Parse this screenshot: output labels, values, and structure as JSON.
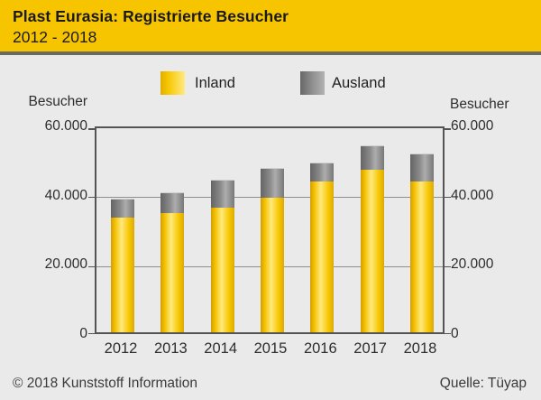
{
  "header": {
    "title": "Plast Eurasia: Registrierte Besucher",
    "subtitle": "2012 - 2018"
  },
  "legend": {
    "items": [
      {
        "label": "Inland",
        "color": "#F7C500"
      },
      {
        "label": "Ausland",
        "color": "#8C8C8C"
      }
    ]
  },
  "axis": {
    "left_title": "Besucher",
    "right_title": "Besucher",
    "ytick_labels": [
      "60.000",
      "40.000",
      "20.000",
      "0"
    ]
  },
  "chart_data": {
    "type": "bar",
    "stacked": true,
    "title": "Plast Eurasia: Registrierte Besucher 2012 - 2018",
    "categories": [
      "2012",
      "2013",
      "2014",
      "2015",
      "2016",
      "2017",
      "2018"
    ],
    "series": [
      {
        "name": "Inland",
        "values": [
          33000,
          34400,
          36000,
          38800,
          43600,
          46900,
          43600
        ]
      },
      {
        "name": "Ausland",
        "values": [
          5600,
          6000,
          8000,
          8500,
          5400,
          7100,
          8100
        ]
      }
    ],
    "totals": [
      38600,
      40400,
      44000,
      47300,
      49000,
      54000,
      51700
    ],
    "ylabel": "Besucher",
    "ylim": [
      0,
      60000
    ],
    "ytick_interval": 20000,
    "grid": true,
    "legend_position": "top"
  },
  "footer": {
    "copyright": "© 2018 Kunststoff Information",
    "source": "Quelle: Tüyap"
  },
  "colors": {
    "header_background": "#F7C500",
    "page_background": "#EAEAEA",
    "divider": "#6A6A62",
    "inland_bar": "#F7C500",
    "ausland_bar": "#8C8C8C",
    "plot_border": "#545454",
    "gridline": "#8F8F8F",
    "text": "#1A1A1A"
  }
}
